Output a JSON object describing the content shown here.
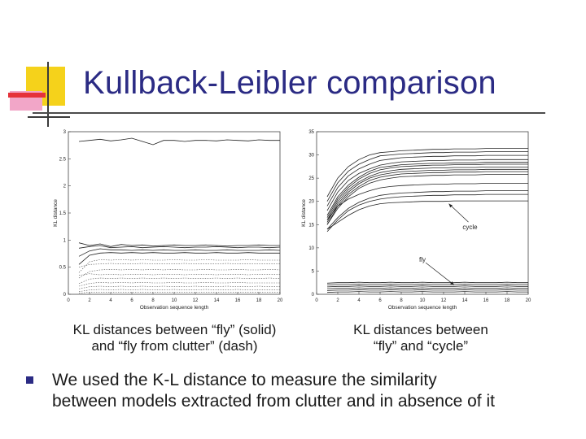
{
  "slide": {
    "title": "Kullback-Leibler comparison",
    "captions": [
      {
        "line1": "KL distances between “fly” (solid)",
        "line2": "and “fly from clutter” (dash)"
      },
      {
        "line1": "KL distances between",
        "line2": "“fly” and “cycle”"
      }
    ],
    "bullet": {
      "line1": "We used the K-L distance to measure the similarity",
      "line2": "between models extracted from clutter and in absence of it"
    },
    "colors": {
      "title": "#2b2b84",
      "logo_yellow": "#f5d21b",
      "logo_red": "#e5323a",
      "logo_pink": "#f2a6c8",
      "bullet": "#2b2b84"
    }
  },
  "chart_data": [
    {
      "type": "line",
      "xlabel": "Observation sequence length",
      "ylabel": "KL distance",
      "xlim": [
        0,
        20
      ],
      "ylim": [
        0,
        3
      ],
      "xticks": [
        0,
        2,
        4,
        6,
        8,
        10,
        12,
        14,
        16,
        18,
        20
      ],
      "yticks": [
        0,
        0.5,
        1,
        1.5,
        2,
        2.5,
        3
      ],
      "x": [
        1,
        2,
        3,
        4,
        5,
        6,
        7,
        8,
        9,
        10,
        11,
        12,
        13,
        14,
        15,
        16,
        17,
        18,
        19,
        20
      ],
      "series": [
        {
          "style": "solid",
          "values": [
            2.82,
            2.84,
            2.86,
            2.83,
            2.85,
            2.88,
            2.82,
            2.76,
            2.84,
            2.84,
            2.82,
            2.84,
            2.84,
            2.83,
            2.85,
            2.84,
            2.83,
            2.85,
            2.84,
            2.84
          ]
        },
        {
          "style": "solid",
          "values": [
            0.95,
            0.9,
            0.93,
            0.88,
            0.92,
            0.9,
            0.91,
            0.89,
            0.9,
            0.91,
            0.9,
            0.9,
            0.91,
            0.9,
            0.89,
            0.9,
            0.9,
            0.91,
            0.9,
            0.9
          ]
        },
        {
          "style": "solid",
          "values": [
            0.85,
            0.88,
            0.9,
            0.86,
            0.87,
            0.88,
            0.86,
            0.87,
            0.88,
            0.87,
            0.86,
            0.87,
            0.87,
            0.88,
            0.87,
            0.86,
            0.87,
            0.87,
            0.86,
            0.87
          ]
        },
        {
          "style": "solid",
          "values": [
            0.7,
            0.8,
            0.84,
            0.82,
            0.82,
            0.81,
            0.82,
            0.81,
            0.82,
            0.81,
            0.81,
            0.82,
            0.81,
            0.81,
            0.82,
            0.81,
            0.81,
            0.81,
            0.82,
            0.81
          ]
        },
        {
          "style": "solid",
          "values": [
            0.55,
            0.72,
            0.76,
            0.77,
            0.76,
            0.77,
            0.76,
            0.77,
            0.76,
            0.76,
            0.77,
            0.76,
            0.76,
            0.77,
            0.76,
            0.76,
            0.77,
            0.76,
            0.76,
            0.76
          ]
        },
        {
          "style": "dashed",
          "values": [
            0.4,
            0.6,
            0.64,
            0.63,
            0.64,
            0.63,
            0.64,
            0.63,
            0.63,
            0.64,
            0.63,
            0.63,
            0.64,
            0.63,
            0.63,
            0.63,
            0.64,
            0.63,
            0.63,
            0.63
          ]
        },
        {
          "style": "dashed",
          "values": [
            0.5,
            0.55,
            0.56,
            0.57,
            0.56,
            0.56,
            0.57,
            0.56,
            0.56,
            0.56,
            0.57,
            0.56,
            0.56,
            0.56,
            0.57,
            0.56,
            0.56,
            0.56,
            0.56,
            0.56
          ]
        },
        {
          "style": "dashed",
          "values": [
            0.3,
            0.42,
            0.45,
            0.46,
            0.45,
            0.46,
            0.45,
            0.46,
            0.45,
            0.46,
            0.45,
            0.45,
            0.46,
            0.45,
            0.45,
            0.46,
            0.45,
            0.45,
            0.46,
            0.45
          ]
        },
        {
          "style": "dashed",
          "values": [
            0.35,
            0.38,
            0.36,
            0.37,
            0.36,
            0.37,
            0.37,
            0.36,
            0.37,
            0.37,
            0.36,
            0.37,
            0.37,
            0.36,
            0.37,
            0.37,
            0.36,
            0.37,
            0.37,
            0.37
          ]
        },
        {
          "style": "dashed",
          "values": [
            0.2,
            0.28,
            0.3,
            0.29,
            0.3,
            0.29,
            0.3,
            0.29,
            0.3,
            0.29,
            0.3,
            0.29,
            0.29,
            0.3,
            0.29,
            0.3,
            0.29,
            0.29,
            0.3,
            0.29
          ]
        },
        {
          "style": "dashed",
          "values": [
            0.15,
            0.2,
            0.22,
            0.21,
            0.22,
            0.21,
            0.22,
            0.21,
            0.21,
            0.22,
            0.21,
            0.21,
            0.22,
            0.21,
            0.21,
            0.22,
            0.21,
            0.21,
            0.21,
            0.21
          ]
        },
        {
          "style": "dashed",
          "values": [
            0.1,
            0.14,
            0.15,
            0.14,
            0.15,
            0.14,
            0.15,
            0.14,
            0.15,
            0.14,
            0.14,
            0.15,
            0.14,
            0.14,
            0.15,
            0.14,
            0.14,
            0.15,
            0.14,
            0.14
          ]
        },
        {
          "style": "dashed",
          "values": [
            0.05,
            0.08,
            0.09,
            0.08,
            0.09,
            0.08,
            0.09,
            0.08,
            0.08,
            0.09,
            0.08,
            0.08,
            0.09,
            0.08,
            0.08,
            0.09,
            0.08,
            0.08,
            0.08,
            0.08
          ]
        },
        {
          "style": "dashed",
          "values": [
            0.02,
            0.04,
            0.04,
            0.04,
            0.04,
            0.04,
            0.04,
            0.04,
            0.04,
            0.04,
            0.04,
            0.04,
            0.04,
            0.04,
            0.04,
            0.04,
            0.04,
            0.04,
            0.04,
            0.04
          ]
        }
      ]
    },
    {
      "type": "line",
      "xlabel": "Observation sequence length",
      "ylabel": "KL distance",
      "xlim": [
        0,
        20
      ],
      "ylim": [
        0,
        35
      ],
      "xticks": [
        0,
        2,
        4,
        6,
        8,
        10,
        12,
        14,
        16,
        18,
        20
      ],
      "yticks": [
        0,
        5,
        10,
        15,
        20,
        25,
        30,
        35
      ],
      "x": [
        1,
        2,
        3,
        4,
        5,
        6,
        7,
        8,
        9,
        10,
        11,
        12,
        13,
        14,
        15,
        16,
        17,
        18,
        19,
        20
      ],
      "annotations": [
        {
          "text": "cycle",
          "x": 14.5,
          "y": 14.5,
          "arrow_to": [
            12.5,
            19.5
          ]
        },
        {
          "text": "fly",
          "x": 10,
          "y": 7.5,
          "arrow_to": [
            13,
            2
          ]
        }
      ],
      "series": [
        {
          "style": "solid",
          "values": [
            21,
            25,
            27.5,
            29,
            30,
            30.5,
            30.7,
            30.9,
            31,
            31.1,
            31.2,
            31.2,
            31.3,
            31.3,
            31.3,
            31.4,
            31.4,
            31.4,
            31.4,
            31.4
          ]
        },
        {
          "style": "solid",
          "values": [
            20,
            24,
            26.5,
            28,
            29,
            29.8,
            30,
            30.2,
            30.3,
            30.4,
            30.5,
            30.5,
            30.6,
            30.6,
            30.6,
            30.7,
            30.7,
            30.7,
            30.7,
            30.7
          ]
        },
        {
          "style": "solid",
          "values": [
            19,
            23,
            25.5,
            27,
            28,
            28.8,
            29.1,
            29.4,
            29.5,
            29.6,
            29.7,
            29.7,
            29.8,
            29.8,
            29.8,
            29.9,
            29.9,
            29.9,
            29.9,
            29.9
          ]
        },
        {
          "style": "solid",
          "values": [
            18,
            22,
            24.5,
            26,
            27,
            27.8,
            28.2,
            28.5,
            28.6,
            28.7,
            28.8,
            28.8,
            28.9,
            28.9,
            28.9,
            29,
            29,
            29,
            29,
            29
          ]
        },
        {
          "style": "solid",
          "values": [
            17,
            21,
            23.5,
            25.2,
            26.5,
            27.3,
            27.6,
            27.9,
            28,
            28.1,
            28.2,
            28.2,
            28.3,
            28.3,
            28.3,
            28.4,
            28.4,
            28.4,
            28.4,
            28.4
          ]
        },
        {
          "style": "solid",
          "values": [
            16.5,
            20.5,
            23,
            24.8,
            26,
            26.8,
            27.2,
            27.5,
            27.6,
            27.7,
            27.8,
            27.8,
            27.9,
            27.9,
            27.9,
            28,
            28,
            28,
            28,
            28
          ]
        },
        {
          "style": "solid",
          "values": [
            16,
            20,
            22.5,
            24.2,
            25.4,
            26.2,
            26.6,
            26.9,
            27,
            27.1,
            27.2,
            27.2,
            27.3,
            27.3,
            27.3,
            27.4,
            27.4,
            27.4,
            27.4,
            27.4
          ]
        },
        {
          "style": "solid",
          "values": [
            15.5,
            19.5,
            22,
            23.8,
            25,
            25.7,
            26.1,
            26.4,
            26.5,
            26.6,
            26.7,
            26.7,
            26.8,
            26.8,
            26.8,
            26.9,
            26.9,
            26.9,
            26.9,
            26.9
          ]
        },
        {
          "style": "solid",
          "values": [
            15,
            19,
            21.5,
            23.2,
            24.5,
            25.2,
            25.6,
            25.9,
            26,
            26.1,
            26.2,
            26.2,
            26.3,
            26.3,
            26.3,
            26.4,
            26.4,
            26.4,
            26.4,
            26.4
          ]
        },
        {
          "style": "solid",
          "values": [
            15,
            18.5,
            21,
            22.8,
            23.9,
            24.6,
            25,
            25.3,
            25.4,
            25.5,
            25.6,
            25.6,
            25.7,
            25.7,
            25.7,
            25.8,
            25.8,
            25.8,
            25.8,
            25.8
          ]
        },
        {
          "style": "solid",
          "values": [
            16,
            19,
            20.5,
            21.5,
            22.3,
            22.9,
            23.2,
            23.4,
            23.5,
            23.6,
            23.7,
            23.7,
            23.8,
            23.8,
            23.8,
            23.9,
            23.9,
            23.9,
            23.9,
            23.9
          ]
        },
        {
          "style": "solid",
          "values": [
            14,
            16.5,
            18.5,
            19.8,
            20.7,
            21.3,
            21.6,
            21.8,
            21.9,
            22,
            22.1,
            22.1,
            22.2,
            22.2,
            22.2,
            22.3,
            22.3,
            22.3,
            22.3,
            22.3
          ]
        },
        {
          "style": "solid",
          "values": [
            13.5,
            16,
            18,
            19.2,
            20,
            20.5,
            20.8,
            21,
            21.1,
            21.2,
            21.3,
            21.3,
            21.4,
            21.4,
            21.4,
            21.5,
            21.5,
            21.5,
            21.5,
            21.5
          ]
        },
        {
          "style": "solid",
          "values": [
            14,
            15.5,
            17,
            18.2,
            19,
            19.5,
            19.7,
            19.8,
            19.9,
            20,
            20,
            20,
            20.1,
            20.1,
            20.1,
            20.1,
            20.1,
            20.1,
            20.1,
            20.1
          ]
        },
        {
          "style": "solid",
          "values": [
            2.4,
            2.5,
            2.5,
            2.6,
            2.5,
            2.5,
            2.6,
            2.5,
            2.5,
            2.6,
            2.5,
            2.5,
            2.5,
            2.6,
            2.5,
            2.5,
            2.5,
            2.6,
            2.5,
            2.5
          ]
        },
        {
          "style": "solid",
          "values": [
            2.0,
            2.1,
            2.1,
            2.2,
            2.1,
            2.1,
            2.2,
            2.1,
            2.1,
            2.2,
            2.1,
            2.1,
            2.1,
            2.2,
            2.1,
            2.1,
            2.1,
            2.2,
            2.1,
            2.1
          ]
        },
        {
          "style": "solid",
          "values": [
            1.6,
            1.7,
            1.7,
            1.8,
            1.7,
            1.7,
            1.8,
            1.7,
            1.7,
            1.8,
            1.7,
            1.7,
            1.7,
            1.8,
            1.7,
            1.7,
            1.7,
            1.8,
            1.7,
            1.7
          ]
        },
        {
          "style": "solid",
          "values": [
            1.2,
            1.3,
            1.3,
            1.4,
            1.3,
            1.3,
            1.4,
            1.3,
            1.3,
            1.4,
            1.3,
            1.3,
            1.3,
            1.4,
            1.3,
            1.3,
            1.3,
            1.4,
            1.3,
            1.3
          ]
        },
        {
          "style": "solid",
          "values": [
            0.8,
            0.9,
            0.9,
            1.0,
            0.9,
            0.9,
            1.0,
            0.9,
            0.9,
            1.0,
            0.9,
            0.9,
            0.9,
            1.0,
            0.9,
            0.9,
            0.9,
            1.0,
            0.9,
            0.9
          ]
        },
        {
          "style": "solid",
          "values": [
            0.4,
            0.5,
            0.5,
            0.6,
            0.5,
            0.5,
            0.6,
            0.5,
            0.5,
            0.6,
            0.5,
            0.5,
            0.5,
            0.6,
            0.5,
            0.5,
            0.5,
            0.6,
            0.5,
            0.5
          ]
        }
      ]
    }
  ]
}
